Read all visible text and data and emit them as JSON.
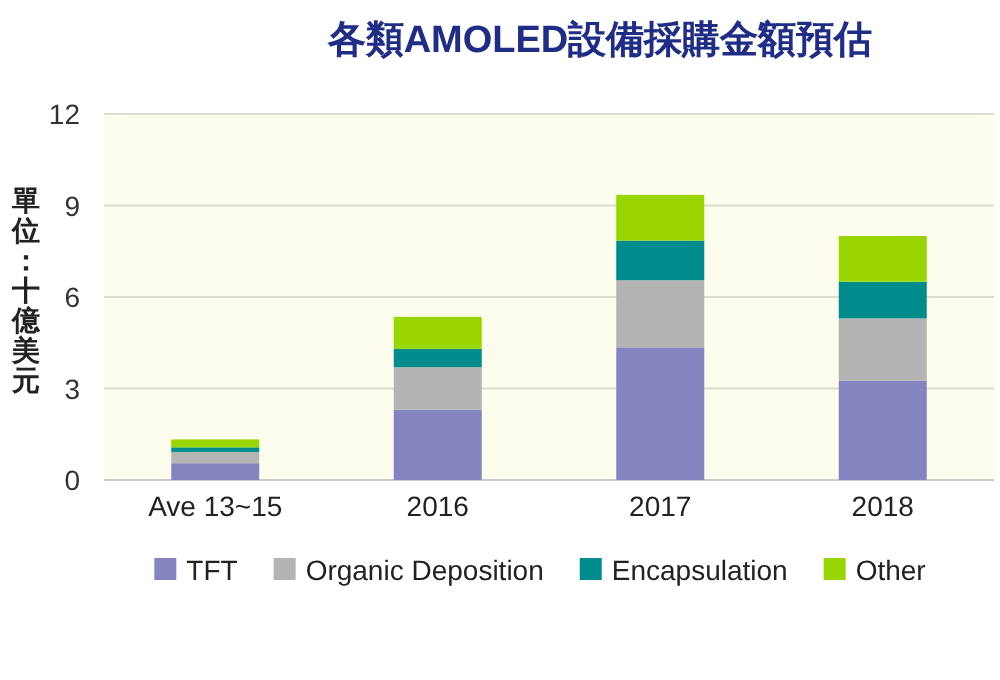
{
  "chart_data": {
    "type": "bar",
    "title": "各類AMOLED設備採購金額預估",
    "ylabel": "單位：十億美元",
    "stacked": true,
    "categories": [
      "Ave 13~15",
      "2016",
      "2017",
      "2018"
    ],
    "series": [
      {
        "name": "TFT",
        "color": "#8484c0",
        "values": [
          0.55,
          2.3,
          4.35,
          3.25
        ]
      },
      {
        "name": "Organic Deposition",
        "color": "#b4b4b4",
        "values": [
          0.37,
          1.4,
          2.2,
          2.05
        ]
      },
      {
        "name": "Encapsulation",
        "color": "#008c8c",
        "values": [
          0.15,
          0.6,
          1.3,
          1.2
        ]
      },
      {
        "name": "Other",
        "color": "#99d600",
        "values": [
          0.26,
          1.05,
          1.5,
          1.5
        ]
      }
    ],
    "ylim": [
      0,
      12
    ],
    "yticks": [
      0,
      3,
      6,
      9,
      12
    ],
    "grid": "y",
    "legend": "bottom"
  }
}
